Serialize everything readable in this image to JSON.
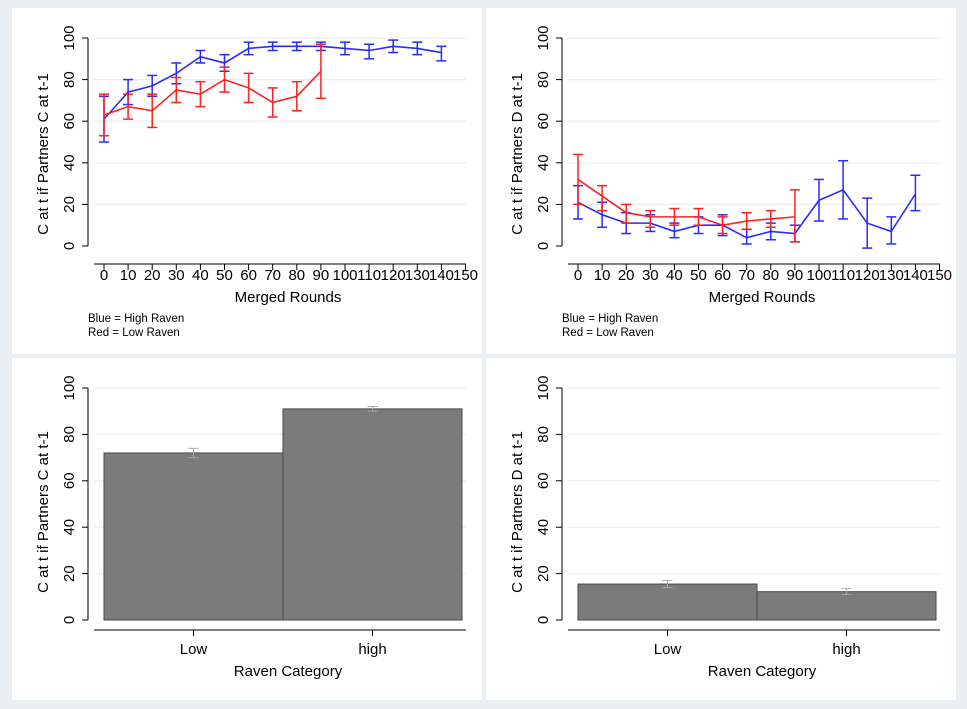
{
  "colors": {
    "outer_bg": "#e8eef2",
    "panel_bg": "#ffffff",
    "grid": "#e9eef1",
    "high_line": "#2a2aff",
    "low_line": "#ff2020",
    "bar_fill": "#7b7b7b",
    "bar_edge": "#4a4a4a",
    "bar_error": "#a8a8a8"
  },
  "chart_data": [
    {
      "type": "line",
      "ylabel": "C at t if Partners C at t-1",
      "xlabel": "Merged Rounds",
      "xlim": [
        -5,
        150
      ],
      "ylim": [
        0,
        100
      ],
      "x_ticks": [
        0,
        10,
        20,
        30,
        40,
        50,
        60,
        70,
        80,
        90,
        100,
        110,
        120,
        130,
        140,
        150
      ],
      "x_tick_labels": [
        "0",
        "10",
        "20",
        "30",
        "40",
        "50",
        "60",
        "70",
        "80",
        "90",
        "100",
        "110",
        "120",
        "130",
        "140",
        "150"
      ],
      "y_ticks": [
        0,
        20,
        40,
        60,
        80,
        100
      ],
      "y_tick_labels": [
        "0",
        "20",
        "40",
        "60",
        "80",
        "100"
      ],
      "grid": true,
      "notes": [
        "Blue = High Raven",
        "Red = Low Raven"
      ],
      "series": [
        {
          "color": "#2a2aff",
          "x": [
            0,
            10,
            20,
            30,
            40,
            50,
            60,
            70,
            80,
            90,
            100,
            110,
            120,
            130,
            140
          ],
          "y": [
            61,
            74,
            77,
            83,
            91,
            88,
            95,
            96,
            96,
            96,
            95,
            94,
            96,
            95,
            93
          ],
          "lo": [
            50,
            68,
            72,
            78,
            88,
            84,
            92,
            94,
            94,
            94,
            92,
            90,
            93,
            92,
            89
          ],
          "hi": [
            72,
            80,
            82,
            88,
            94,
            92,
            98,
            98,
            98,
            98,
            98,
            97,
            99,
            98,
            96
          ]
        },
        {
          "color": "#ff2020",
          "x": [
            0,
            10,
            20,
            30,
            40,
            50,
            60,
            70,
            80,
            90
          ],
          "y": [
            63,
            67,
            65,
            75,
            73,
            80,
            76,
            69,
            72,
            84
          ],
          "lo": [
            53,
            61,
            57,
            69,
            67,
            74,
            69,
            62,
            65,
            71
          ],
          "hi": [
            73,
            73,
            73,
            81,
            79,
            86,
            83,
            76,
            79,
            97
          ]
        }
      ]
    },
    {
      "type": "line",
      "ylabel": "C at t if Partners D at t-1",
      "xlabel": "Merged Rounds",
      "xlim": [
        -5,
        150
      ],
      "ylim": [
        0,
        100
      ],
      "x_ticks": [
        0,
        10,
        20,
        30,
        40,
        50,
        60,
        70,
        80,
        90,
        100,
        110,
        120,
        130,
        140,
        150
      ],
      "x_tick_labels": [
        "0",
        "10",
        "20",
        "30",
        "40",
        "50",
        "60",
        "70",
        "80",
        "90",
        "100",
        "110",
        "120",
        "130",
        "140",
        "150"
      ],
      "y_ticks": [
        0,
        20,
        40,
        60,
        80,
        100
      ],
      "y_tick_labels": [
        "0",
        "20",
        "40",
        "60",
        "80",
        "100"
      ],
      "grid": true,
      "notes": [
        "Blue = High Raven",
        "Red = Low Raven"
      ],
      "series": [
        {
          "color": "#2a2aff",
          "x": [
            0,
            10,
            20,
            30,
            40,
            50,
            60,
            70,
            80,
            90,
            100,
            110,
            120,
            130,
            140
          ],
          "y": [
            21,
            15,
            11,
            11,
            7,
            10,
            10,
            4,
            7,
            6,
            22,
            27,
            11,
            7,
            25
          ],
          "lo": [
            13,
            9,
            6,
            7,
            4,
            6,
            5,
            1,
            3,
            2,
            12,
            13,
            -1,
            1,
            17
          ],
          "hi": [
            29,
            21,
            16,
            15,
            11,
            14,
            15,
            8,
            11,
            10,
            32,
            41,
            23,
            14,
            34
          ]
        },
        {
          "color": "#ff2020",
          "x": [
            0,
            10,
            20,
            30,
            40,
            50,
            60,
            70,
            80,
            90
          ],
          "y": [
            32,
            24,
            16,
            14,
            14,
            14,
            10,
            12,
            13,
            14
          ],
          "lo": [
            20,
            17,
            11,
            9,
            10,
            10,
            6,
            8,
            9,
            2
          ],
          "hi": [
            44,
            29,
            20,
            17,
            18,
            18,
            14,
            16,
            17,
            27
          ]
        }
      ]
    },
    {
      "type": "bar",
      "ylabel": "C at t if Partners C at t-1",
      "xlabel": "Raven Category",
      "categories": [
        "Low",
        "high"
      ],
      "values": [
        72,
        91
      ],
      "err_lo": [
        70,
        90
      ],
      "err_hi": [
        74,
        92
      ],
      "ylim": [
        0,
        100
      ],
      "y_ticks": [
        0,
        20,
        40,
        60,
        80,
        100
      ],
      "y_tick_labels": [
        "0",
        "20",
        "40",
        "60",
        "80",
        "100"
      ],
      "grid": true
    },
    {
      "type": "bar",
      "ylabel": "C at t if Partners D at t-1",
      "xlabel": "Raven Category",
      "categories": [
        "Low",
        "high"
      ],
      "values": [
        15.5,
        12.2
      ],
      "err_lo": [
        14,
        11
      ],
      "err_hi": [
        17,
        13.5
      ],
      "ylim": [
        0,
        100
      ],
      "y_ticks": [
        0,
        20,
        40,
        60,
        80,
        100
      ],
      "y_tick_labels": [
        "0",
        "20",
        "40",
        "60",
        "80",
        "100"
      ],
      "grid": true
    }
  ]
}
